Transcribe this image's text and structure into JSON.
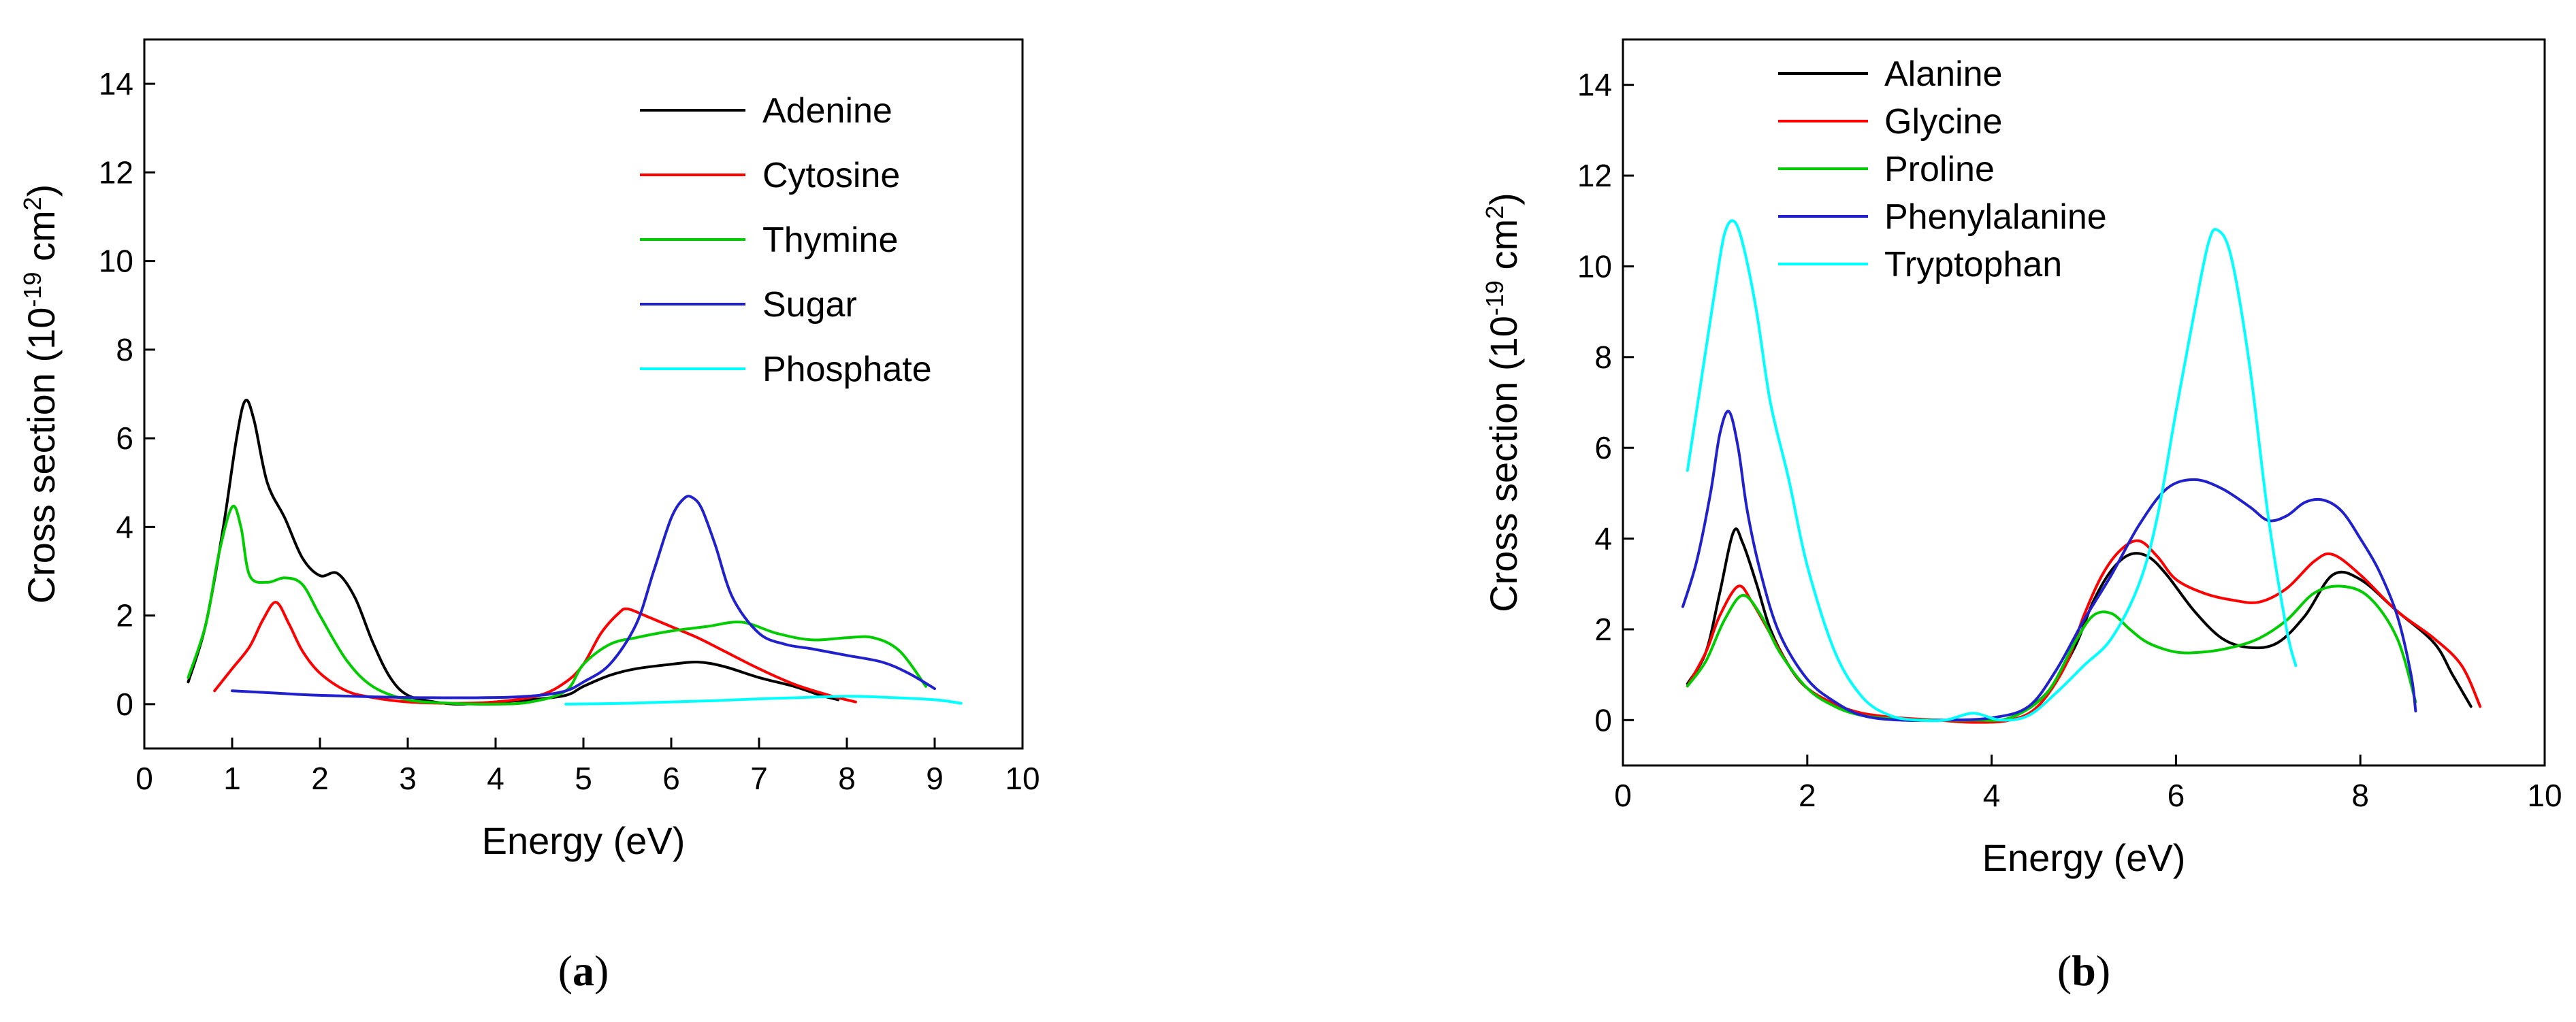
{
  "chart_data": [
    {
      "type": "line",
      "panel": "a",
      "panel_label": "a",
      "xlabel": "Energy (eV)",
      "ylabel": "Cross section (10-19 cm2)",
      "ylabel_parts": {
        "pre": "Cross section (10",
        "sup1": "-19",
        "mid": " cm",
        "sup2": "2",
        "post": ")"
      },
      "xlim": [
        0,
        10
      ],
      "ylim": [
        -1,
        15
      ],
      "xticks": [
        0,
        1,
        2,
        3,
        4,
        5,
        6,
        7,
        8,
        9,
        10
      ],
      "yticks": [
        0,
        2,
        4,
        6,
        8,
        10,
        12,
        14
      ],
      "grid": false,
      "legend_position": "top-right",
      "series": [
        {
          "name": "Adenine",
          "color": "#000000",
          "x": [
            0.5,
            0.7,
            0.9,
            1.05,
            1.15,
            1.25,
            1.4,
            1.6,
            1.8,
            2.0,
            2.2,
            2.4,
            2.6,
            2.8,
            3.0,
            3.3,
            3.6,
            4.0,
            4.4,
            4.8,
            5.0,
            5.3,
            5.6,
            6.0,
            6.3,
            6.6,
            7.0,
            7.4,
            7.7,
            7.9
          ],
          "y": [
            0.5,
            1.8,
            4.0,
            6.0,
            6.85,
            6.4,
            5.0,
            4.2,
            3.3,
            2.9,
            2.95,
            2.4,
            1.4,
            0.6,
            0.2,
            0.05,
            0.0,
            0.05,
            0.1,
            0.2,
            0.4,
            0.65,
            0.8,
            0.9,
            0.95,
            0.85,
            0.6,
            0.4,
            0.2,
            0.1
          ]
        },
        {
          "name": "Cytosine",
          "color": "#ff0000",
          "x": [
            0.8,
            1.0,
            1.2,
            1.35,
            1.5,
            1.65,
            1.8,
            2.0,
            2.3,
            2.6,
            3.0,
            3.5,
            4.0,
            4.5,
            4.8,
            5.0,
            5.2,
            5.4,
            5.5,
            5.7,
            6.0,
            6.3,
            6.6,
            7.0,
            7.4,
            7.8,
            8.1
          ],
          "y": [
            0.3,
            0.8,
            1.3,
            1.9,
            2.3,
            1.8,
            1.2,
            0.7,
            0.3,
            0.15,
            0.05,
            0.02,
            0.05,
            0.2,
            0.5,
            0.9,
            1.6,
            2.05,
            2.15,
            2.0,
            1.75,
            1.5,
            1.2,
            0.8,
            0.45,
            0.2,
            0.05
          ]
        },
        {
          "name": "Thymine",
          "color": "#00cc00",
          "x": [
            0.5,
            0.7,
            0.85,
            1.0,
            1.1,
            1.2,
            1.4,
            1.6,
            1.8,
            2.0,
            2.3,
            2.6,
            3.0,
            3.5,
            4.0,
            4.4,
            4.8,
            5.0,
            5.3,
            5.6,
            6.0,
            6.4,
            6.8,
            7.2,
            7.6,
            8.0,
            8.3,
            8.6,
            8.9
          ],
          "y": [
            0.6,
            1.8,
            3.4,
            4.45,
            4.0,
            2.9,
            2.75,
            2.85,
            2.7,
            2.0,
            1.0,
            0.4,
            0.1,
            0.02,
            0.0,
            0.05,
            0.3,
            0.9,
            1.35,
            1.5,
            1.65,
            1.75,
            1.85,
            1.6,
            1.45,
            1.5,
            1.5,
            1.2,
            0.4
          ]
        },
        {
          "name": "Sugar",
          "color": "#2020cc",
          "x": [
            1.0,
            1.5,
            2.0,
            3.0,
            4.0,
            4.5,
            4.8,
            5.0,
            5.3,
            5.6,
            5.8,
            6.0,
            6.15,
            6.25,
            6.35,
            6.5,
            6.7,
            7.0,
            7.3,
            7.6,
            8.0,
            8.4,
            8.7,
            9.0
          ],
          "y": [
            0.3,
            0.25,
            0.2,
            0.15,
            0.15,
            0.2,
            0.3,
            0.5,
            0.9,
            1.8,
            3.0,
            4.2,
            4.65,
            4.65,
            4.4,
            3.6,
            2.4,
            1.6,
            1.35,
            1.25,
            1.1,
            0.95,
            0.7,
            0.35
          ]
        },
        {
          "name": "Phosphate",
          "color": "#00ffff",
          "x": [
            4.8,
            5.5,
            6.0,
            6.5,
            7.0,
            7.5,
            8.0,
            8.5,
            9.0,
            9.3
          ],
          "y": [
            0.0,
            0.02,
            0.05,
            0.08,
            0.12,
            0.15,
            0.18,
            0.15,
            0.1,
            0.02
          ]
        }
      ]
    },
    {
      "type": "line",
      "panel": "b",
      "panel_label": "b",
      "xlabel": "Energy (eV)",
      "ylabel": "Cross section (10-19 cm2)",
      "ylabel_parts": {
        "pre": "Cross section (10",
        "sup1": "-19",
        "mid": " cm",
        "sup2": "2",
        "post": ")"
      },
      "xlim": [
        0,
        10
      ],
      "ylim": [
        -1,
        15
      ],
      "xticks": [
        0,
        2,
        4,
        6,
        8,
        10
      ],
      "yticks": [
        0,
        2,
        4,
        6,
        8,
        10,
        12,
        14
      ],
      "grid": false,
      "legend_position": "top-left",
      "series": [
        {
          "name": "Alanine",
          "color": "#000000",
          "x": [
            0.7,
            0.9,
            1.05,
            1.2,
            1.3,
            1.45,
            1.6,
            1.8,
            2.0,
            2.3,
            2.6,
            3.0,
            3.4,
            3.8,
            4.2,
            4.6,
            4.9,
            5.1,
            5.3,
            5.5,
            5.7,
            5.9,
            6.2,
            6.5,
            6.8,
            7.1,
            7.4,
            7.7,
            8.0,
            8.4,
            8.8,
            9.0,
            9.2
          ],
          "y": [
            0.8,
            1.5,
            2.8,
            4.15,
            3.9,
            3.0,
            2.0,
            1.2,
            0.7,
            0.35,
            0.12,
            0.02,
            0.0,
            -0.02,
            0.05,
            0.6,
            1.6,
            2.6,
            3.3,
            3.65,
            3.6,
            3.2,
            2.4,
            1.8,
            1.6,
            1.7,
            2.3,
            3.2,
            3.1,
            2.4,
            1.7,
            1.0,
            0.3
          ]
        },
        {
          "name": "Glycine",
          "color": "#ff0000",
          "x": [
            0.7,
            0.9,
            1.05,
            1.25,
            1.4,
            1.6,
            1.8,
            2.0,
            2.3,
            2.6,
            3.0,
            3.4,
            3.8,
            4.2,
            4.5,
            4.8,
            5.0,
            5.2,
            5.4,
            5.6,
            5.8,
            6.0,
            6.3,
            6.6,
            6.9,
            7.2,
            7.5,
            7.7,
            8.0,
            8.4,
            8.8,
            9.1,
            9.3
          ],
          "y": [
            0.75,
            1.5,
            2.3,
            2.95,
            2.6,
            1.9,
            1.2,
            0.7,
            0.35,
            0.15,
            0.05,
            0.0,
            -0.05,
            0.0,
            0.3,
            1.2,
            2.3,
            3.2,
            3.75,
            3.95,
            3.6,
            3.1,
            2.8,
            2.65,
            2.6,
            2.9,
            3.5,
            3.65,
            3.2,
            2.4,
            1.8,
            1.2,
            0.3
          ]
        },
        {
          "name": "Proline",
          "color": "#00cc00",
          "x": [
            0.7,
            0.9,
            1.1,
            1.3,
            1.5,
            1.7,
            2.0,
            2.3,
            2.6,
            3.0,
            3.4,
            3.8,
            4.2,
            4.6,
            4.9,
            5.1,
            5.3,
            5.5,
            5.7,
            6.0,
            6.3,
            6.6,
            6.9,
            7.2,
            7.5,
            7.8,
            8.1,
            8.4,
            8.6
          ],
          "y": [
            0.75,
            1.3,
            2.2,
            2.75,
            2.3,
            1.5,
            0.7,
            0.3,
            0.1,
            0.02,
            0.0,
            0.0,
            0.05,
            0.6,
            1.7,
            2.3,
            2.35,
            2.0,
            1.7,
            1.5,
            1.5,
            1.6,
            1.8,
            2.2,
            2.8,
            2.95,
            2.7,
            1.8,
            0.4
          ]
        },
        {
          "name": "Phenylalanine",
          "color": "#2020cc",
          "x": [
            0.65,
            0.8,
            0.95,
            1.05,
            1.15,
            1.25,
            1.35,
            1.5,
            1.7,
            2.0,
            2.3,
            2.6,
            3.0,
            3.5,
            4.0,
            4.4,
            4.7,
            5.0,
            5.3,
            5.6,
            5.9,
            6.2,
            6.5,
            6.8,
            7.0,
            7.2,
            7.4,
            7.6,
            7.8,
            8.0,
            8.2,
            8.4,
            8.55,
            8.6
          ],
          "y": [
            2.5,
            3.5,
            5.0,
            6.3,
            6.8,
            6.0,
            4.6,
            3.2,
            1.9,
            0.9,
            0.4,
            0.1,
            0.0,
            0.0,
            0.05,
            0.3,
            1.1,
            2.2,
            3.2,
            4.3,
            5.1,
            5.3,
            5.1,
            4.7,
            4.4,
            4.5,
            4.8,
            4.85,
            4.6,
            4.0,
            3.3,
            2.3,
            1.0,
            0.2
          ]
        },
        {
          "name": "Tryptophan",
          "color": "#00ffff",
          "x": [
            0.7,
            0.85,
            1.0,
            1.1,
            1.2,
            1.3,
            1.45,
            1.6,
            1.8,
            2.0,
            2.3,
            2.6,
            2.9,
            3.2,
            3.5,
            3.8,
            4.1,
            4.4,
            4.7,
            5.0,
            5.3,
            5.6,
            5.8,
            6.0,
            6.2,
            6.35,
            6.45,
            6.6,
            6.8,
            7.0,
            7.2,
            7.3
          ],
          "y": [
            5.5,
            7.5,
            9.5,
            10.7,
            11.0,
            10.5,
            9.0,
            7.0,
            5.3,
            3.4,
            1.5,
            0.5,
            0.1,
            0.0,
            0.0,
            0.15,
            0.0,
            0.1,
            0.6,
            1.2,
            1.8,
            3.0,
            4.5,
            6.8,
            9.0,
            10.5,
            10.8,
            10.2,
            7.8,
            4.5,
            2.0,
            1.2
          ]
        }
      ]
    }
  ]
}
